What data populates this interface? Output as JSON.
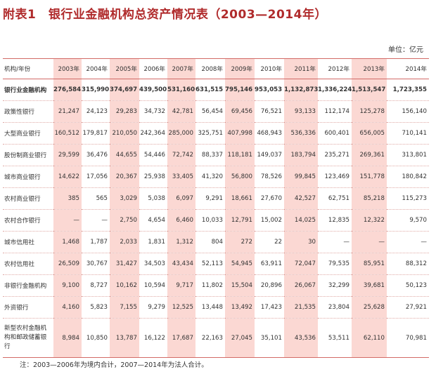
{
  "title": "附表1　银行业金融机构总资产情况表（2003—2014年）",
  "unit": "单位：亿元",
  "table": {
    "corner": "机构/年份",
    "years": [
      "2003年",
      "2004年",
      "2005年",
      "2006年",
      "2007年",
      "2008年",
      "2009年",
      "2010年",
      "2011年",
      "2012年",
      "2013年",
      "2014年"
    ],
    "rows": [
      {
        "label": "银行业金融机构",
        "values": [
          "276,584",
          "315,990",
          "374,697",
          "439,500",
          "531,160",
          "631,515",
          "795,146",
          "953,053",
          "1,132,873",
          "1,336,224",
          "1,513,547",
          "1,723,355"
        ]
      },
      {
        "label": "政策性银行",
        "values": [
          "21,247",
          "24,123",
          "29,283",
          "34,732",
          "42,781",
          "56,454",
          "69,456",
          "76,521",
          "93,133",
          "112,174",
          "125,278",
          "156,140"
        ]
      },
      {
        "label": "大型商业银行",
        "values": [
          "160,512",
          "179,817",
          "210,050",
          "242,364",
          "285,000",
          "325,751",
          "407,998",
          "468,943",
          "536,336",
          "600,401",
          "656,005",
          "710,141"
        ]
      },
      {
        "label": "股份制商业银行",
        "values": [
          "29,599",
          "36,476",
          "44,655",
          "54,446",
          "72,742",
          "88,337",
          "118,181",
          "149,037",
          "183,794",
          "235,271",
          "269,361",
          "313,801"
        ]
      },
      {
        "label": "城市商业银行",
        "values": [
          "14,622",
          "17,056",
          "20,367",
          "25,938",
          "33,405",
          "41,320",
          "56,800",
          "78,526",
          "99,845",
          "123,469",
          "151,778",
          "180,842"
        ]
      },
      {
        "label": "农村商业银行",
        "values": [
          "385",
          "565",
          "3,029",
          "5,038",
          "6,097",
          "9,291",
          "18,661",
          "27,670",
          "42,527",
          "62,751",
          "85,218",
          "115,273"
        ]
      },
      {
        "label": "农村合作银行",
        "values": [
          "—",
          "—",
          "2,750",
          "4,654",
          "6,460",
          "10,033",
          "12,791",
          "15,002",
          "14,025",
          "12,835",
          "12,322",
          "9,570"
        ]
      },
      {
        "label": "城市信用社",
        "values": [
          "1,468",
          "1,787",
          "2,033",
          "1,831",
          "1,312",
          "804",
          "272",
          "22",
          "30",
          "—",
          "—",
          "—"
        ]
      },
      {
        "label": "农村信用社",
        "values": [
          "26,509",
          "30,767",
          "31,427",
          "34,503",
          "43,434",
          "52,113",
          "54,945",
          "63,911",
          "72,047",
          "79,535",
          "85,951",
          "88,312"
        ]
      },
      {
        "label": "非银行金融机构",
        "values": [
          "9,100",
          "8,727",
          "10,162",
          "10,594",
          "9,717",
          "11,802",
          "15,504",
          "20,896",
          "26,067",
          "32,299",
          "39,681",
          "50,123"
        ]
      },
      {
        "label": "外资银行",
        "values": [
          "4,160",
          "5,823",
          "7,155",
          "9,279",
          "12,525",
          "13,448",
          "13,492",
          "17,423",
          "21,535",
          "23,804",
          "25,628",
          "27,921"
        ]
      },
      {
        "label": "新型农村金融机构和邮政储蓄银行",
        "values": [
          "8,984",
          "10,850",
          "13,787",
          "16,122",
          "17,687",
          "22,163",
          "27,045",
          "35,101",
          "43,536",
          "53,511",
          "62,110",
          "70,981"
        ]
      }
    ]
  },
  "note": "注：2003—2006年为境内合计，2007—2014年为法人合计。"
}
